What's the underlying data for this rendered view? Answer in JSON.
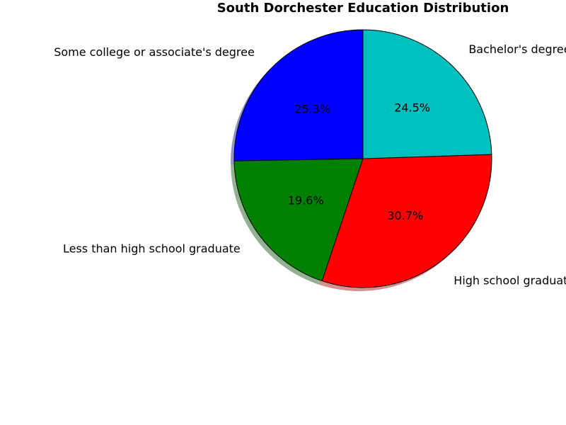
{
  "chart_data": {
    "type": "pie",
    "title": "South Dorchester Education Distribution",
    "start_angle_deg": 90,
    "direction": "counterclockwise",
    "shadow": true,
    "slices": [
      {
        "label": "Some college or associate's degree",
        "value": 25.3,
        "pct_label": "25.3%",
        "color": "#0000ff"
      },
      {
        "label": "Less than high school graduate",
        "value": 19.6,
        "pct_label": "19.6%",
        "color": "#008000"
      },
      {
        "label": "High school graduate",
        "value": 30.7,
        "pct_label": "30.7%",
        "color": "#ff0000"
      },
      {
        "label": "Bachelor's degree",
        "value": 24.5,
        "pct_label": "24.5%",
        "color": "#00bfbf"
      }
    ]
  }
}
